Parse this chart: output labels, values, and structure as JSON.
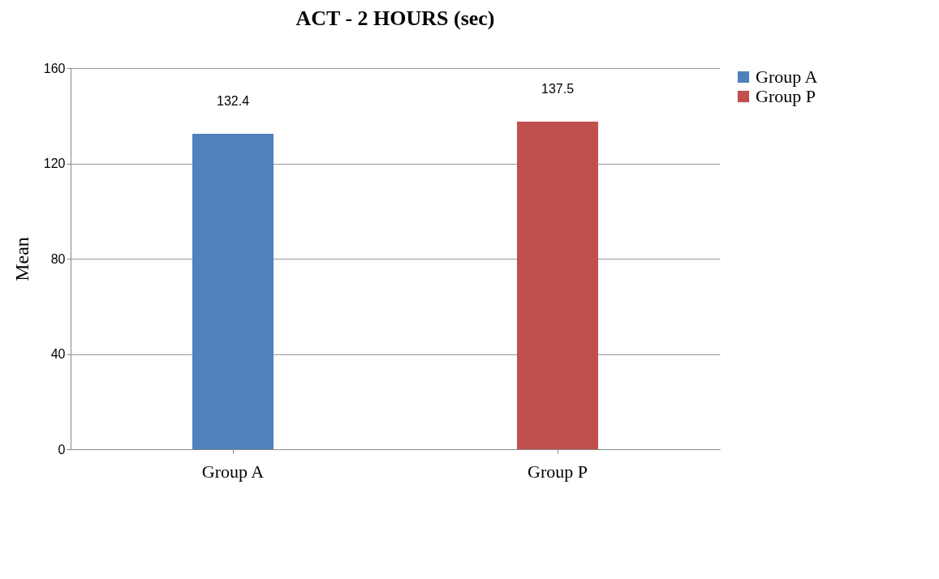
{
  "chart_data": {
    "type": "bar",
    "title": "ACT  - 2 HOURS (sec)",
    "ylabel": "Mean",
    "categories": [
      "Group A",
      "Group P"
    ],
    "series": [
      {
        "name": "Group A",
        "color": "#4f81bd",
        "values": [
          132.4,
          null
        ]
      },
      {
        "name": "Group P",
        "color": "#c0504d",
        "values": [
          null,
          137.5
        ]
      }
    ],
    "ylim": [
      0,
      160
    ],
    "yticks": [
      0,
      40,
      80,
      120,
      160
    ],
    "grid": "y",
    "legend": "right",
    "data_labels": true
  }
}
